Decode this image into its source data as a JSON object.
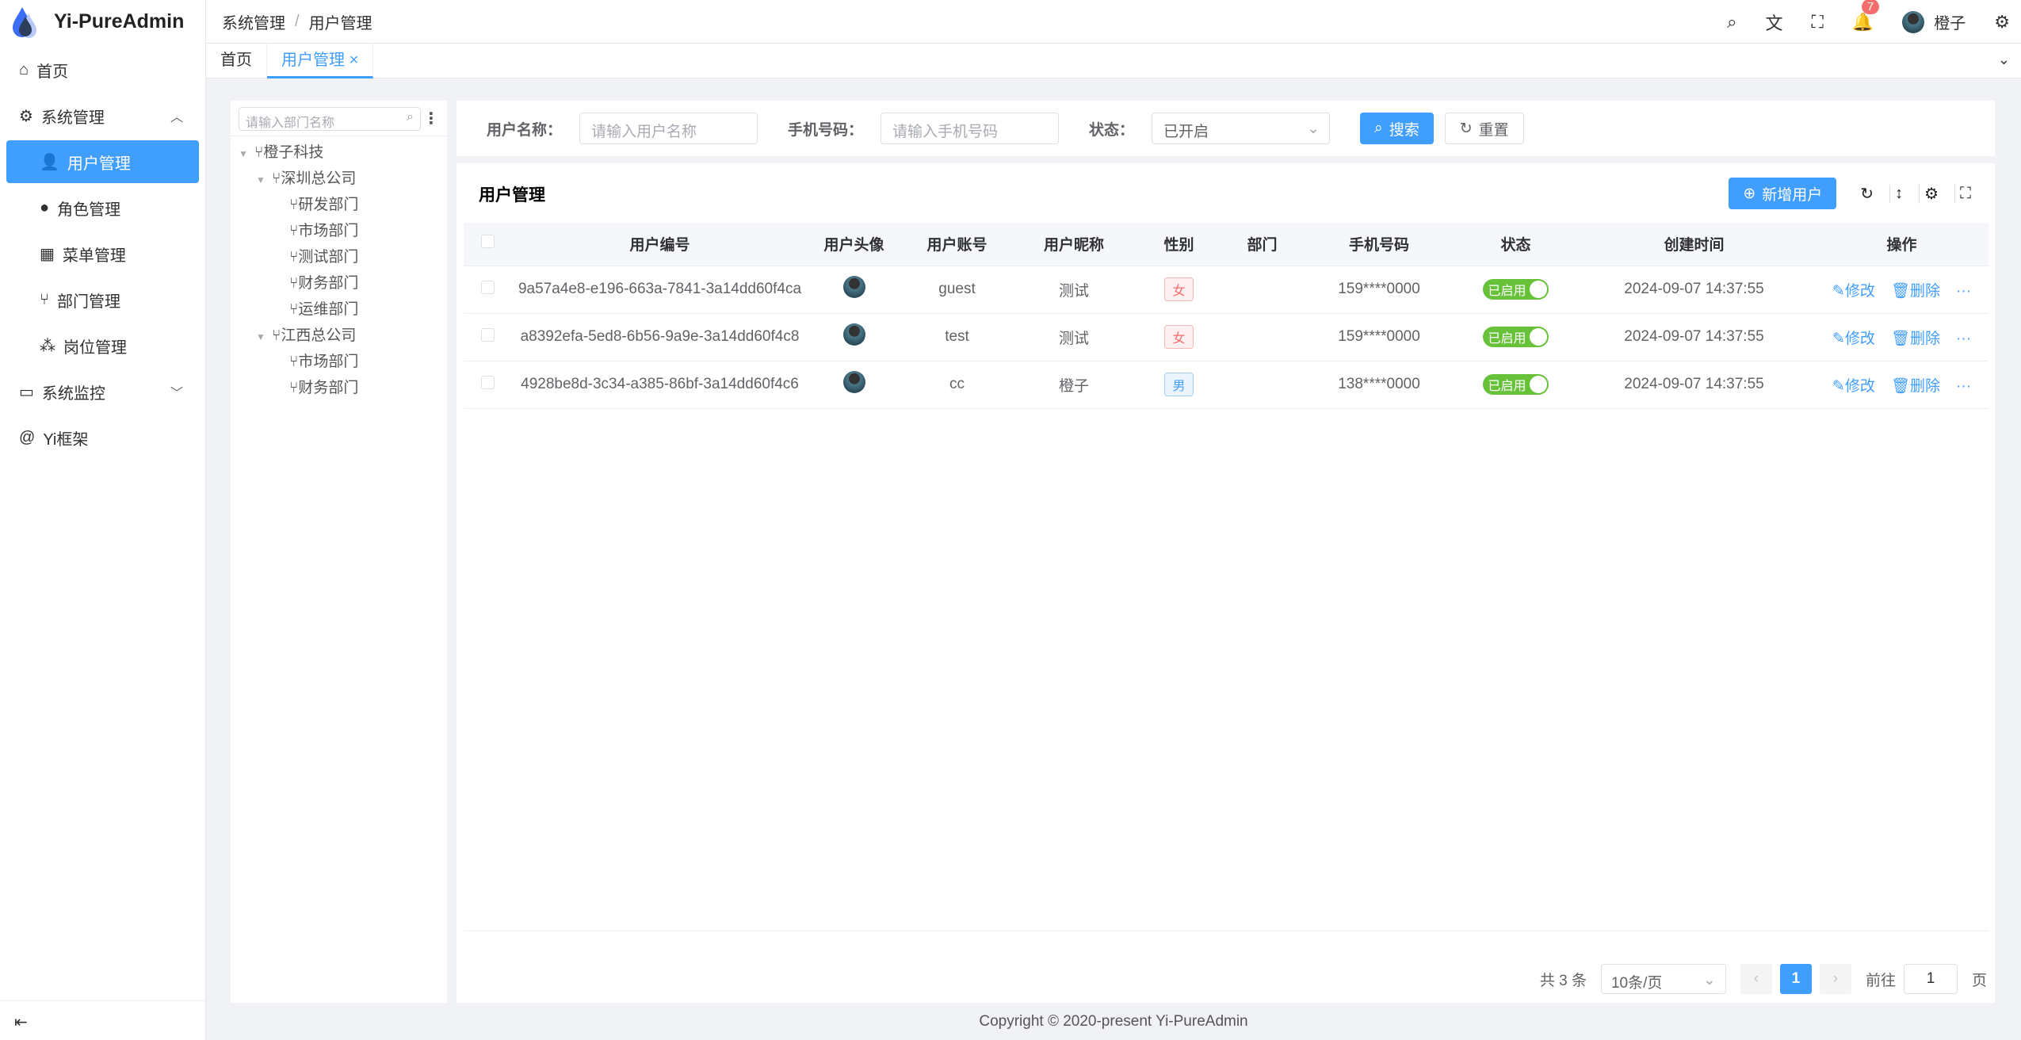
{
  "app": {
    "title": "Yi-PureAdmin",
    "accent": "#409eff"
  },
  "sidebar": {
    "items": [
      {
        "label": "首页",
        "icon": "home-icon"
      },
      {
        "label": "系统管理",
        "icon": "gear-icon",
        "expanded": true
      },
      {
        "label": "用户管理",
        "icon": "user-lock-icon",
        "active": true
      },
      {
        "label": "角色管理",
        "icon": "role-icon"
      },
      {
        "label": "菜单管理",
        "icon": "grid-icon"
      },
      {
        "label": "部门管理",
        "icon": "branch-icon"
      },
      {
        "label": "岗位管理",
        "icon": "org-icon"
      },
      {
        "label": "系统监控",
        "icon": "monitor-icon"
      },
      {
        "label": "Yi框架",
        "icon": "at-icon"
      }
    ]
  },
  "header": {
    "breadcrumb": [
      "系统管理",
      "用户管理"
    ],
    "notifications": "7",
    "username": "橙子"
  },
  "tabs": [
    {
      "label": "首页"
    },
    {
      "label": "用户管理",
      "active": true
    }
  ],
  "tree": {
    "placeholder": "请输入部门名称",
    "nodes": [
      {
        "label": "橙子科技",
        "level": 0,
        "expandable": true
      },
      {
        "label": "深圳总公司",
        "level": 1,
        "expandable": true
      },
      {
        "label": "研发部门",
        "level": 2
      },
      {
        "label": "市场部门",
        "level": 2
      },
      {
        "label": "测试部门",
        "level": 2
      },
      {
        "label": "财务部门",
        "level": 2
      },
      {
        "label": "运维部门",
        "level": 2
      },
      {
        "label": "江西总公司",
        "level": 1,
        "expandable": true
      },
      {
        "label": "市场部门",
        "level": 2
      },
      {
        "label": "财务部门",
        "level": 2
      }
    ]
  },
  "search": {
    "username_label": "用户名称：",
    "username_placeholder": "请输入用户名称",
    "phone_label": "手机号码：",
    "phone_placeholder": "请输入手机号码",
    "status_label": "状态：",
    "status_value": "已开启",
    "search_btn": "搜索",
    "reset_btn": "重置"
  },
  "table": {
    "title": "用户管理",
    "add_btn": "新增用户",
    "columns": [
      "用户编号",
      "用户头像",
      "用户账号",
      "用户昵称",
      "性别",
      "部门",
      "手机号码",
      "状态",
      "创建时间",
      "操作"
    ],
    "rows": [
      {
        "id": "9a57a4e8-e196-663a-7841-3a14dd60f4ca",
        "account": "guest",
        "nickname": "测试",
        "gender": "女",
        "dept": "",
        "phone": "159****0000",
        "status": "已启用",
        "created": "2024-09-07 14:37:55"
      },
      {
        "id": "a8392efa-5ed8-6b56-9a9e-3a14dd60f4c8",
        "account": "test",
        "nickname": "测试",
        "gender": "女",
        "dept": "",
        "phone": "159****0000",
        "status": "已启用",
        "created": "2024-09-07 14:37:55"
      },
      {
        "id": "4928be8d-3c34-a385-86bf-3a14dd60f4c6",
        "account": "cc",
        "nickname": "橙子",
        "gender": "男",
        "dept": "",
        "phone": "138****0000",
        "status": "已启用",
        "created": "2024-09-07 14:37:55"
      }
    ],
    "edit": "修改",
    "delete": "删除"
  },
  "pagination": {
    "total": "共 3 条",
    "page_size": "10条/页",
    "current": "1",
    "goto_label": "前往",
    "goto_value": "1",
    "page_suffix": "页"
  },
  "footer": "Copyright © 2020-present Yi-PureAdmin"
}
